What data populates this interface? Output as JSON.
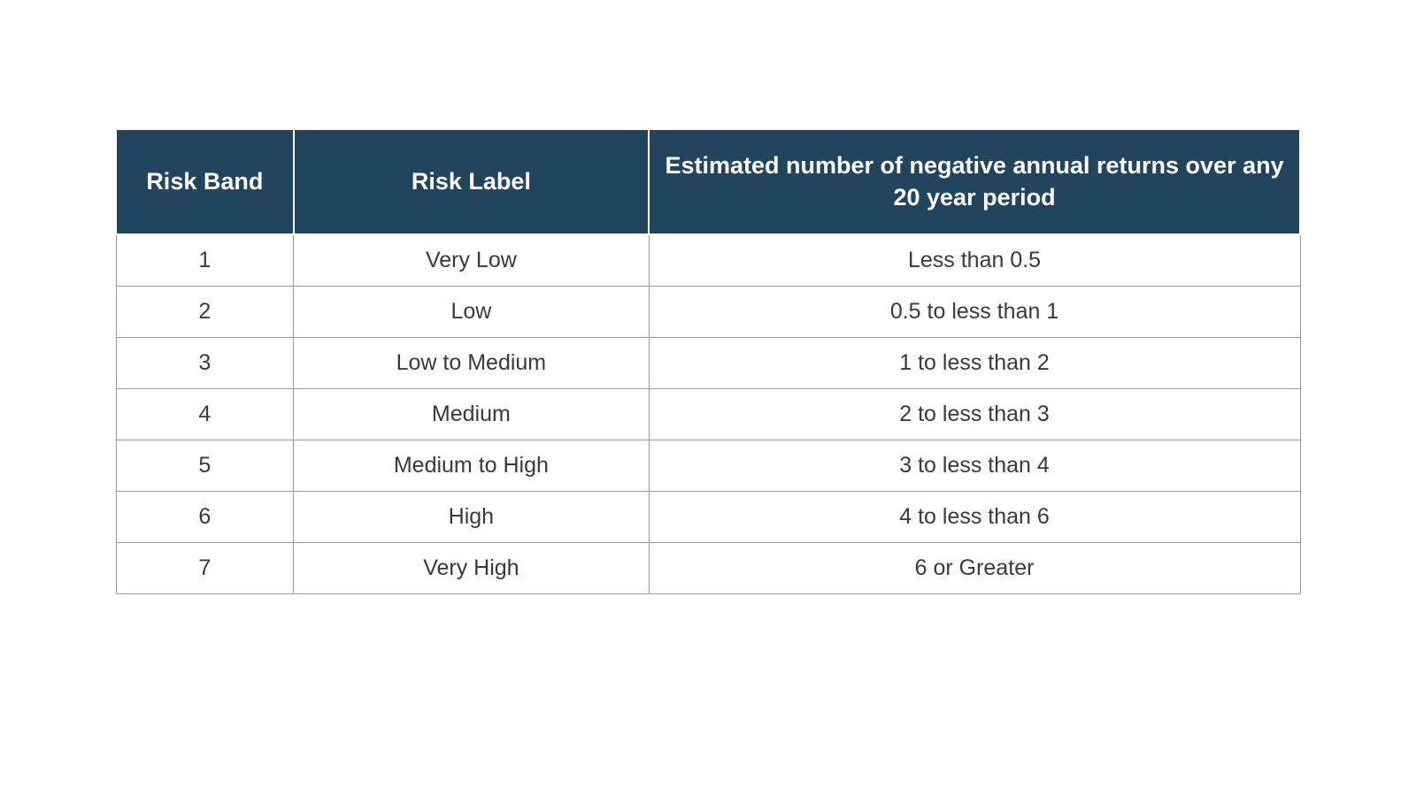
{
  "table": {
    "type": "table",
    "header_bg_color": "#21445f",
    "header_text_color": "#ffffff",
    "header_fontsize": 27,
    "header_fontweight": 700,
    "body_bg_color": "#ffffff",
    "body_text_color": "#3a3a3a",
    "body_fontsize": 25,
    "body_fontweight": 300,
    "border_color": "#9a9a9a",
    "header_border_color": "#ffffff",
    "columns": [
      {
        "label": "Risk Band",
        "width_pct": 15
      },
      {
        "label": "Risk Label",
        "width_pct": 30
      },
      {
        "label": "Estimated number of negative annual returns over any 20 year period",
        "width_pct": 55
      }
    ],
    "rows": [
      {
        "band": "1",
        "label": "Very Low",
        "estimate": "Less than 0.5"
      },
      {
        "band": "2",
        "label": "Low",
        "estimate": "0.5 to less than 1"
      },
      {
        "band": "3",
        "label": "Low to Medium",
        "estimate": "1 to less than 2"
      },
      {
        "band": "4",
        "label": "Medium",
        "estimate": "2 to less than 3"
      },
      {
        "band": "5",
        "label": "Medium to High",
        "estimate": "3 to less than 4"
      },
      {
        "band": "6",
        "label": "High",
        "estimate": "4 to less than 6"
      },
      {
        "band": "7",
        "label": "Very High",
        "estimate": "6 or Greater"
      }
    ]
  }
}
